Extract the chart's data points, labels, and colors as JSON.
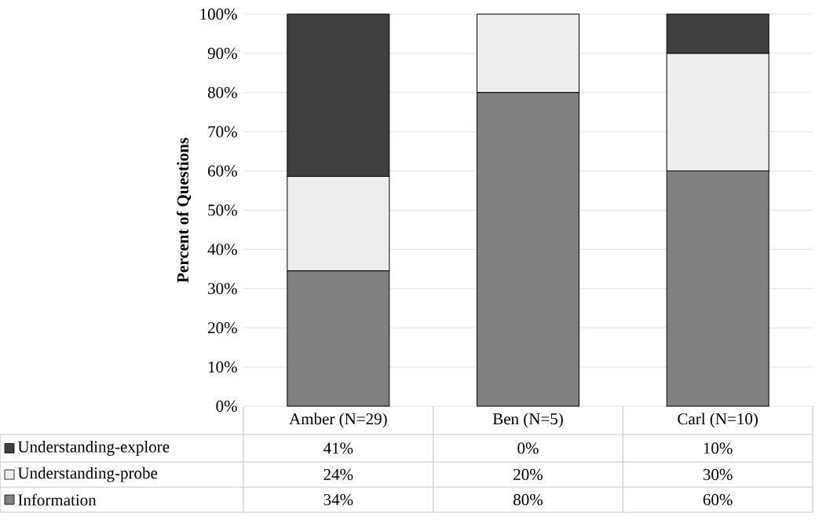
{
  "chart_data": {
    "type": "bar",
    "stacked": true,
    "ylabel": "Percent of Questions",
    "categories": [
      "Amber (N=29)",
      "Ben (N=5)",
      "Carl (N=10)"
    ],
    "series": [
      {
        "name": "Information",
        "color": "#808080",
        "values": [
          34.5,
          80,
          60
        ],
        "value_labels": [
          "34%",
          "80%",
          "60%"
        ]
      },
      {
        "name": "Understanding-probe",
        "color": "#ededed",
        "values": [
          24.1,
          20,
          30
        ],
        "value_labels": [
          "24%",
          "20%",
          "30%"
        ]
      },
      {
        "name": "Understanding-explore",
        "color": "#404040",
        "values": [
          41.4,
          0,
          10
        ],
        "value_labels": [
          "41%",
          "0%",
          "10%"
        ]
      }
    ],
    "ylim": [
      0,
      100
    ],
    "yticks": [
      {
        "value": 0,
        "label": "0%"
      },
      {
        "value": 10,
        "label": "10%"
      },
      {
        "value": 20,
        "label": "20%"
      },
      {
        "value": 30,
        "label": "30%"
      },
      {
        "value": 40,
        "label": "40%"
      },
      {
        "value": 50,
        "label": "50%"
      },
      {
        "value": 60,
        "label": "60%"
      },
      {
        "value": 70,
        "label": "70%"
      },
      {
        "value": 80,
        "label": "80%"
      },
      {
        "value": 90,
        "label": "90%"
      },
      {
        "value": 100,
        "label": "100%"
      }
    ],
    "grid": "y",
    "legend": "bottom"
  }
}
